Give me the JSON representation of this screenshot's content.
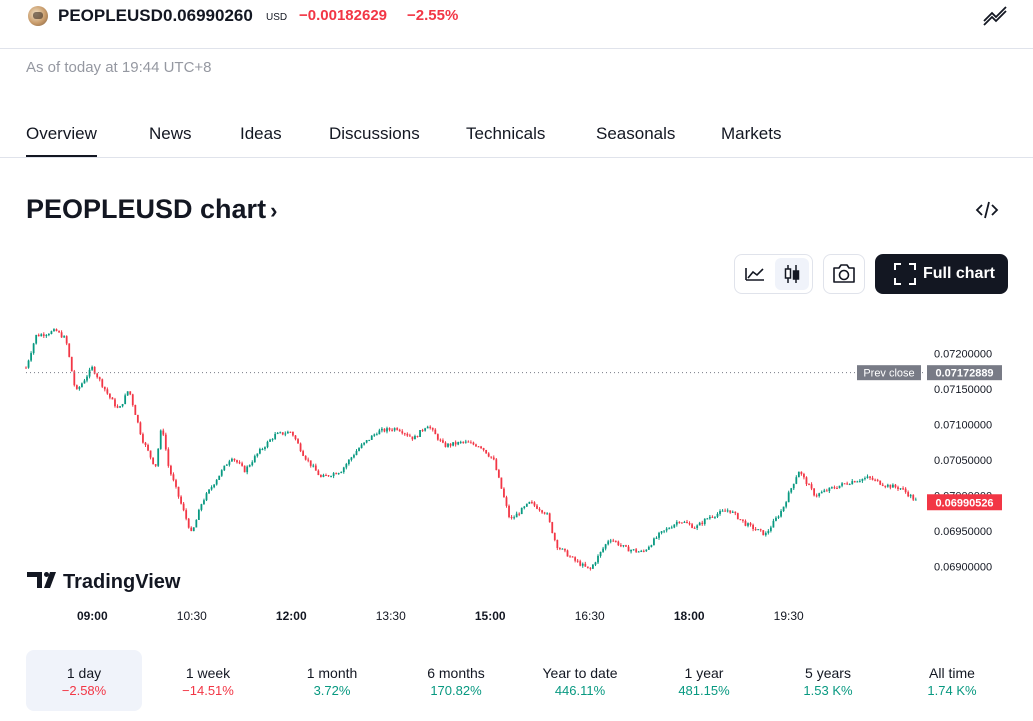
{
  "header": {
    "symbol": "PEOPLEUSD",
    "price": "0.06990260",
    "currency": "USD",
    "change_abs": "−0.00182629",
    "change_pct": "−2.55%",
    "as_of": "As of today at 19:44 UTC+8"
  },
  "tabs": [
    "Overview",
    "News",
    "Ideas",
    "Discussions",
    "Technicals",
    "Seasonals",
    "Markets"
  ],
  "chart_header": {
    "title": "PEOPLEUSD chart",
    "title_arrow": "›"
  },
  "toolbar": {
    "full_chart_label": "Full chart"
  },
  "colors": {
    "up": "#089981",
    "down": "#f23645",
    "accent_dark": "#131722",
    "muted": "#9598a1"
  },
  "icons": [
    "coin-icon",
    "trend-lines-icon",
    "embed-code-icon",
    "area-chart-icon",
    "candles-icon",
    "camera-icon",
    "fullscreen-icon",
    "tradingview-logo-icon"
  ],
  "chart_data": {
    "type": "candlestick",
    "ylim": [
      0.0686,
      0.0724
    ],
    "y_ticks": [
      "0.07200000",
      "0.07150000",
      "0.07100000",
      "0.07050000",
      "0.07000000",
      "0.06950000",
      "0.06900000"
    ],
    "x_ticks": [
      {
        "label": "09:00",
        "bold": true
      },
      {
        "label": "10:30",
        "bold": false
      },
      {
        "label": "12:00",
        "bold": true
      },
      {
        "label": "13:30",
        "bold": false
      },
      {
        "label": "15:00",
        "bold": true
      },
      {
        "label": "16:30",
        "bold": false
      },
      {
        "label": "18:00",
        "bold": true
      },
      {
        "label": "19:30",
        "bold": false
      }
    ],
    "prev_close": {
      "label": "Prev close",
      "value": "0.07172889"
    },
    "last_price": "0.06990526",
    "watermark": "TradingView",
    "close_path": [
      [
        8.0,
        0.0718
      ],
      [
        8.15,
        0.07225
      ],
      [
        8.3,
        0.07228
      ],
      [
        8.45,
        0.07232
      ],
      [
        8.6,
        0.0722
      ],
      [
        8.75,
        0.07145
      ],
      [
        9.0,
        0.0718
      ],
      [
        9.25,
        0.0714
      ],
      [
        9.4,
        0.0712
      ],
      [
        9.55,
        0.0715
      ],
      [
        9.75,
        0.0708
      ],
      [
        9.95,
        0.0704
      ],
      [
        10.05,
        0.071
      ],
      [
        10.15,
        0.0704
      ],
      [
        10.35,
        0.06985
      ],
      [
        10.5,
        0.06945
      ],
      [
        10.65,
        0.0699
      ],
      [
        10.85,
        0.0702
      ],
      [
        11.1,
        0.07055
      ],
      [
        11.3,
        0.07035
      ],
      [
        11.5,
        0.0706
      ],
      [
        11.75,
        0.07085
      ],
      [
        12.0,
        0.0709
      ],
      [
        12.2,
        0.07055
      ],
      [
        12.45,
        0.07025
      ],
      [
        12.75,
        0.07035
      ],
      [
        13.0,
        0.07065
      ],
      [
        13.3,
        0.0709
      ],
      [
        13.6,
        0.07095
      ],
      [
        13.85,
        0.0708
      ],
      [
        14.05,
        0.071
      ],
      [
        14.3,
        0.0707
      ],
      [
        14.6,
        0.07075
      ],
      [
        14.85,
        0.0707
      ],
      [
        15.05,
        0.0705
      ],
      [
        15.3,
        0.06965
      ],
      [
        15.6,
        0.0699
      ],
      [
        15.85,
        0.06975
      ],
      [
        16.0,
        0.0693
      ],
      [
        16.25,
        0.0691
      ],
      [
        16.5,
        0.06895
      ],
      [
        16.8,
        0.0694
      ],
      [
        17.05,
        0.06925
      ],
      [
        17.3,
        0.0692
      ],
      [
        17.55,
        0.06945
      ],
      [
        17.85,
        0.06965
      ],
      [
        18.1,
        0.06955
      ],
      [
        18.3,
        0.0697
      ],
      [
        18.6,
        0.0698
      ],
      [
        18.85,
        0.0696
      ],
      [
        19.15,
        0.06945
      ],
      [
        19.4,
        0.0698
      ],
      [
        19.65,
        0.07035
      ],
      [
        19.9,
        0.07
      ],
      [
        20.15,
        0.0701
      ],
      [
        20.45,
        0.0702
      ],
      [
        20.7,
        0.07025
      ],
      [
        20.95,
        0.07015
      ],
      [
        21.2,
        0.0701
      ],
      [
        21.45,
        0.0699
      ]
    ]
  },
  "ranges": [
    {
      "label": "1 day",
      "value": "−2.58%",
      "dir": "neg",
      "active": true
    },
    {
      "label": "1 week",
      "value": "−14.51%",
      "dir": "neg",
      "active": false
    },
    {
      "label": "1 month",
      "value": "3.72%",
      "dir": "pos",
      "active": false
    },
    {
      "label": "6 months",
      "value": "170.82%",
      "dir": "pos",
      "active": false
    },
    {
      "label": "Year to date",
      "value": "446.11%",
      "dir": "pos",
      "active": false
    },
    {
      "label": "1 year",
      "value": "481.15%",
      "dir": "pos",
      "active": false
    },
    {
      "label": "5 years",
      "value": "1.53 K%",
      "dir": "pos",
      "active": false
    },
    {
      "label": "All time",
      "value": "1.74 K%",
      "dir": "pos",
      "active": false
    }
  ]
}
